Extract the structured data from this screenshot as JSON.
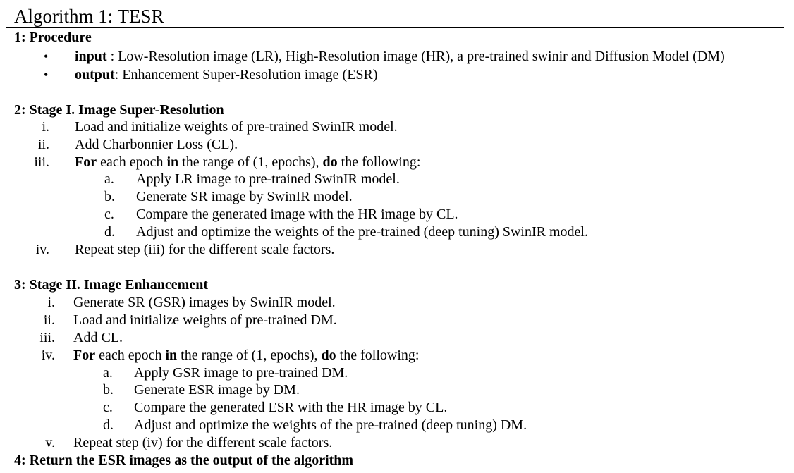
{
  "title": "Algorithm 1: TESR",
  "procedure": {
    "header": "1: Procedure",
    "bullet_symbol": "•",
    "input_label": "input",
    "input_text": " : Low-Resolution image (LR), High-Resolution image (HR), a pre-trained swinir and Diffusion Model (DM)",
    "output_label": "output",
    "output_text": ": Enhancement Super-Resolution image (ESR)"
  },
  "stage1": {
    "header": "2: Stage I. Image Super-Resolution",
    "steps": [
      {
        "marker": "i.",
        "text": "Load and initialize weights of pre-trained SwinIR model."
      },
      {
        "marker": "ii.",
        "text": "Add Charbonnier Loss (CL)."
      },
      {
        "marker": "iii.",
        "for_kw": "For",
        "t1": " each epoch ",
        "in_kw": "in",
        "t2": " the range of (1, epochs), ",
        "do_kw": "do",
        "t3": " the following:"
      },
      {
        "marker": "iv.",
        "text": "Repeat step (iii) for the different scale factors."
      }
    ],
    "substeps": [
      {
        "marker": "a.",
        "text": "Apply LR image to pre-trained SwinIR model."
      },
      {
        "marker": "b.",
        "text": "Generate SR image by SwinIR model."
      },
      {
        "marker": "c.",
        "text": "Compare the generated image with the HR image by CL."
      },
      {
        "marker": "d.",
        "text": "Adjust and optimize the weights of the pre-trained (deep tuning) SwinIR model."
      }
    ]
  },
  "stage2": {
    "header": "3: Stage II. Image Enhancement",
    "steps": [
      {
        "marker": "i.",
        "text": "Generate SR (GSR) images by SwinIR model."
      },
      {
        "marker": "ii.",
        "text": "Load and initialize weights of pre-trained DM."
      },
      {
        "marker": "iii.",
        "text": "Add CL."
      },
      {
        "marker": "iv.",
        "for_kw": "For",
        "t1": " each epoch ",
        "in_kw": "in",
        "t2": " the range of (1, epochs), ",
        "do_kw": "do",
        "t3": " the following:"
      },
      {
        "marker": "v.",
        "text": "Repeat step (iv) for the different scale factors."
      }
    ],
    "substeps": [
      {
        "marker": "a.",
        "text": "Apply GSR image to pre-trained DM."
      },
      {
        "marker": "b.",
        "text": "Generate ESR image by DM."
      },
      {
        "marker": "c.",
        "text": "Compare the generated ESR with the HR image by CL."
      },
      {
        "marker": "d.",
        "text": "Adjust and optimize the weights of the pre-trained (deep tuning) DM."
      }
    ]
  },
  "final": {
    "header": "4: Return the ESR images as the output of the algorithm"
  }
}
